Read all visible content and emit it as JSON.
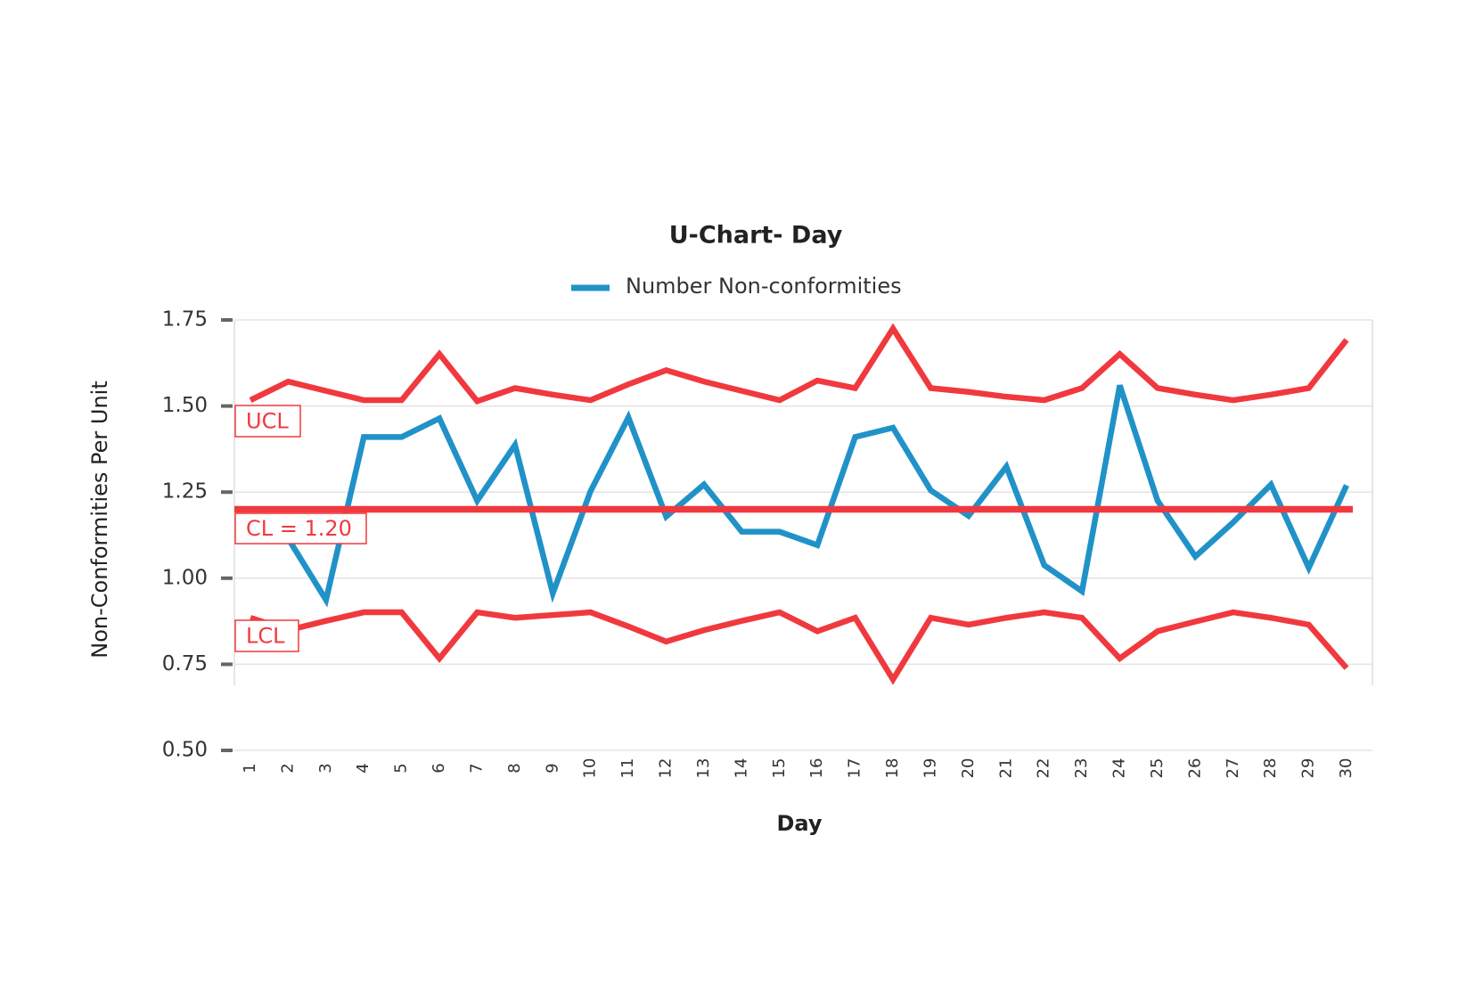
{
  "chart_data": {
    "type": "line",
    "title": "U-Chart- Day",
    "x_label": "Day",
    "y_label": "Non-Conformities Per Unit",
    "categories": [
      "1",
      "2",
      "3",
      "4",
      "5",
      "6",
      "7",
      "8",
      "9",
      "10",
      "11",
      "12",
      "13",
      "14",
      "15",
      "16",
      "17",
      "18",
      "19",
      "20",
      "21",
      "22",
      "23",
      "24",
      "25",
      "26",
      "27",
      "28",
      "29",
      "30"
    ],
    "series": [
      {
        "name": "Number Non-conformities",
        "color": "#2092c8",
        "values": [
          1.17,
          1.115,
          0.937,
          1.41,
          1.41,
          1.464,
          1.225,
          1.387,
          0.956,
          1.253,
          1.467,
          1.179,
          1.272,
          1.135,
          1.135,
          1.096,
          1.41,
          1.437,
          1.255,
          1.181,
          1.324,
          1.038,
          0.962,
          1.56,
          1.225,
          1.063,
          1.162,
          1.272,
          1.03,
          1.27
        ]
      }
    ],
    "control_limits": {
      "color": "#f0393e",
      "ucl": {
        "label": "UCL",
        "values": [
          1.517,
          1.571,
          1.544,
          1.517,
          1.517,
          1.651,
          1.514,
          1.552,
          1.533,
          1.517,
          1.563,
          1.604,
          1.571,
          1.544,
          1.517,
          1.574,
          1.552,
          1.725,
          1.552,
          1.541,
          1.527,
          1.517,
          1.552,
          1.651,
          1.552,
          1.533,
          1.517,
          1.533,
          1.552,
          1.692
        ]
      },
      "cl": {
        "label": "CL = 1.20",
        "value": 1.2
      },
      "lcl": {
        "label": "LCL",
        "values": [
          0.885,
          0.849,
          0.876,
          0.901,
          0.901,
          0.767,
          0.901,
          0.885,
          0.893,
          0.901,
          0.86,
          0.816,
          0.849,
          0.876,
          0.901,
          0.846,
          0.885,
          0.706,
          0.885,
          0.865,
          0.885,
          0.901,
          0.885,
          0.767,
          0.846,
          0.874,
          0.901,
          0.885,
          0.865,
          0.739
        ]
      }
    },
    "ylim": [
      0.5,
      1.75
    ],
    "yticks": [
      {
        "value": 0.5,
        "label": "0.50"
      },
      {
        "value": 0.75,
        "label": "0.75"
      },
      {
        "value": 1,
        "label": "1.00"
      },
      {
        "value": 1.25,
        "label": "1.25"
      },
      {
        "value": 1.5,
        "label": "1.50"
      },
      {
        "value": 1.75,
        "label": "1.75"
      }
    ],
    "grid": true,
    "legend": "top"
  }
}
